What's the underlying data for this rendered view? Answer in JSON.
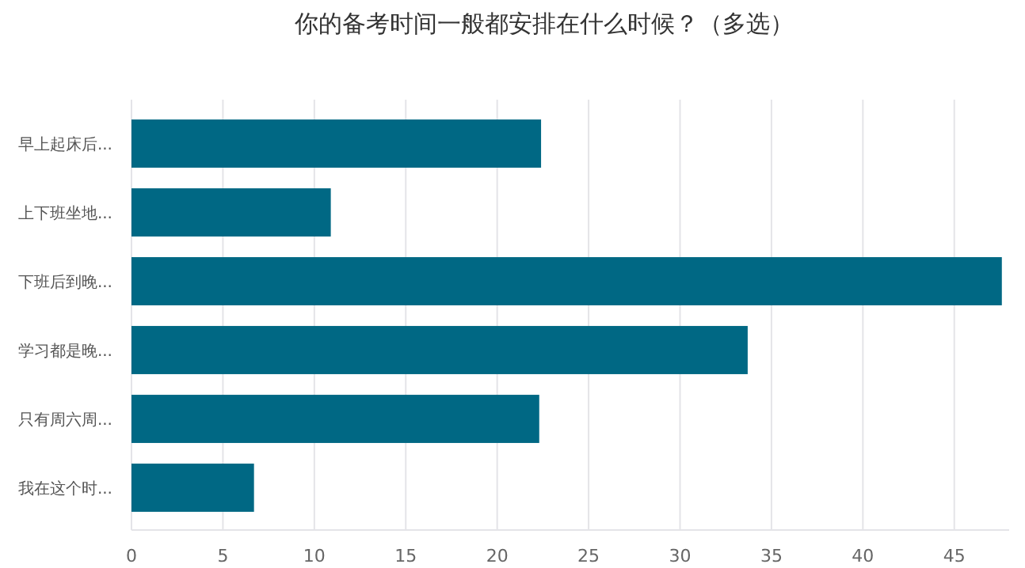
{
  "chart_data": {
    "type": "bar",
    "orientation": "horizontal",
    "title": "你的备考时间一般都安排在什么时候？（多选）",
    "categories": [
      "早上起床后...",
      "上下班坐地...",
      "下班后到晚...",
      "学习都是晚...",
      "只有周六周...",
      "我在这个时..."
    ],
    "values": [
      22.4,
      10.9,
      47.6,
      33.7,
      22.3,
      6.7
    ],
    "color": "#006884",
    "xlim": [
      0,
      48
    ],
    "xticks": [
      0,
      5,
      10,
      15,
      20,
      25,
      30,
      35,
      40,
      45
    ],
    "grid": "x"
  }
}
